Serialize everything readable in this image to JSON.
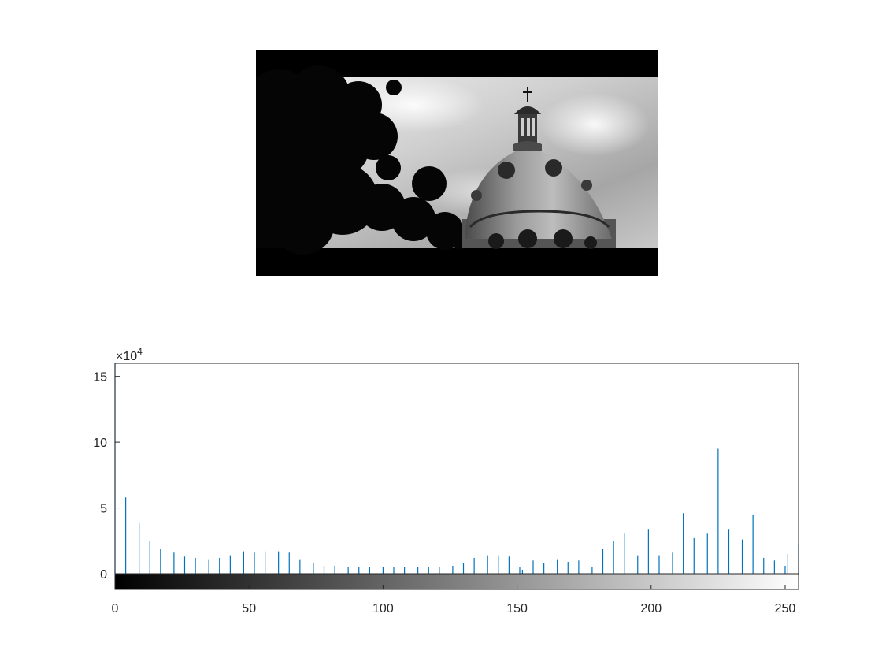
{
  "image": {
    "description_icon": "grayscale-dome-photo-icon"
  },
  "chart_data": {
    "type": "bar",
    "title": "",
    "xlabel": "",
    "ylabel": "",
    "xlim": [
      0,
      255
    ],
    "ylim": [
      -1.2,
      16
    ],
    "y_exponent_label": "×10",
    "y_exponent_power": "4",
    "x_ticks": [
      0,
      50,
      100,
      150,
      200,
      250
    ],
    "x_tick_labels": [
      "0",
      "50",
      "100",
      "150",
      "200",
      "250"
    ],
    "y_ticks": [
      0,
      5,
      10,
      15
    ],
    "y_tick_labels": [
      "0",
      "5",
      "10",
      "15"
    ],
    "grid": false,
    "legend": "none",
    "bar_color": "#0072bd",
    "colorbar": "gray-0-to-255",
    "bins": [
      0,
      4,
      9,
      13,
      17,
      22,
      26,
      30,
      35,
      39,
      43,
      48,
      52,
      56,
      61,
      65,
      69,
      74,
      78,
      82,
      87,
      91,
      95,
      100,
      104,
      108,
      113,
      117,
      121,
      126,
      130,
      134,
      139,
      143,
      147,
      151,
      152,
      156,
      160,
      165,
      169,
      173,
      178,
      182,
      186,
      190,
      195,
      199,
      203,
      208,
      212,
      216,
      221,
      225,
      229,
      234,
      238,
      242,
      246,
      250,
      251,
      255
    ],
    "values": [
      16.0,
      5.8,
      3.9,
      2.5,
      1.9,
      1.6,
      1.3,
      1.2,
      1.1,
      1.2,
      1.4,
      1.7,
      1.6,
      1.7,
      1.7,
      1.6,
      1.1,
      0.8,
      0.6,
      0.6,
      0.5,
      0.5,
      0.5,
      0.5,
      0.5,
      0.5,
      0.5,
      0.5,
      0.5,
      0.6,
      0.8,
      1.2,
      1.4,
      1.4,
      1.3,
      0.5,
      0.3,
      1.0,
      0.8,
      1.1,
      0.9,
      1.0,
      0.5,
      1.9,
      2.5,
      3.1,
      1.4,
      3.4,
      1.4,
      1.6,
      4.6,
      2.7,
      3.1,
      9.5,
      3.4,
      2.6,
      4.5,
      1.2,
      1.0,
      0.6,
      1.5,
      2.3
    ]
  }
}
